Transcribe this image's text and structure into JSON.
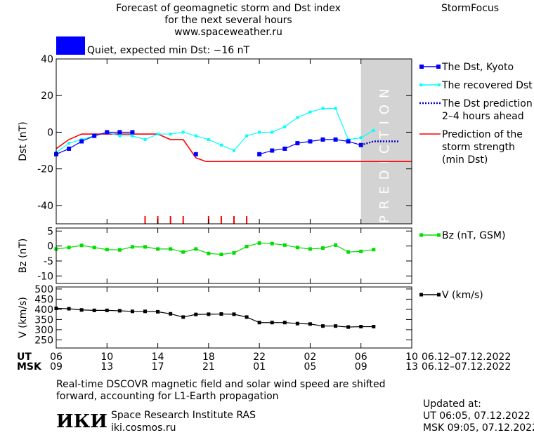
{
  "header": {
    "title_line1": "Forecast of geomagnetic storm and Dst index",
    "title_line2": "for the next several hours",
    "title_line3": "www.spaceweather.ru",
    "brand": "StormFocus",
    "status_text": "Quiet, expected min Dst: −16 nT",
    "status_color": "#0000ff"
  },
  "prediction_label": "PREDICTION",
  "footer": {
    "note_line1": "Real-time DSCOVR magnetic field and solar wind speed are shifted",
    "note_line2": "forward, accounting for L1-Earth propagation",
    "institute": "Space Research Institute RAS",
    "site": "iki.cosmos.ru",
    "logo_text": "ИКИ",
    "updated_label": "Updated at:",
    "updated_ut": "UT   06:05, 07.12.2022",
    "updated_msk": "MSK 09:05, 07.12.2022"
  },
  "time_axis": {
    "ut_label": "UT",
    "msk_label": "MSK",
    "ut_ticks": [
      "06",
      "10",
      "14",
      "18",
      "22",
      "02",
      "06",
      "10"
    ],
    "msk_ticks": [
      "09",
      "13",
      "17",
      "21",
      "01",
      "05",
      "09",
      "13"
    ],
    "ut_range": "06.12–07.12.2022",
    "msk_range": "06.12–07.12.2022"
  },
  "chart_data": [
    {
      "type": "line",
      "ylabel": "Dst (nT)",
      "ylim": [
        -50,
        40
      ],
      "yticks": [
        40,
        20,
        0,
        -20,
        -40
      ],
      "x_unit": "hours since 06 UT 06.12.2022",
      "xlim": [
        0,
        28
      ],
      "prediction_region": [
        24,
        28
      ],
      "colors": {
        "dst": "#0000ff",
        "recovered": "#00ffff",
        "prediction": "#0000cc",
        "strength": "#ff0000",
        "shade": "#d3d3d3"
      },
      "series": [
        {
          "name": "The Dst, Kyoto",
          "key": "dst",
          "x": [
            0,
            1,
            2,
            3,
            4,
            5,
            6,
            11,
            16,
            17,
            18,
            19,
            20,
            21,
            22,
            23,
            24
          ],
          "y": [
            -12,
            -9,
            -5,
            -2,
            0,
            0,
            0,
            -12,
            -12,
            -10,
            -9,
            -6,
            -5,
            -4,
            -4,
            -5,
            -7
          ]
        },
        {
          "name": "The recovered Dst",
          "key": "recovered",
          "x": [
            0,
            1,
            2,
            3,
            4,
            5,
            6,
            7,
            8,
            9,
            10,
            11,
            12,
            13,
            14,
            15,
            16,
            17,
            18,
            19,
            20,
            21,
            22,
            23,
            24,
            25
          ],
          "y": [
            -11,
            -6,
            -4,
            -2,
            0,
            -2,
            -2,
            -4,
            -1,
            -1,
            0,
            -2,
            -4,
            -7,
            -10,
            -2,
            0,
            0,
            3,
            8,
            11,
            13,
            13,
            -4,
            -3,
            1
          ]
        },
        {
          "name": "The Dst prediction 2-4 hours ahead",
          "key": "prediction",
          "x": [
            24,
            25,
            26,
            27
          ],
          "y": [
            -7,
            -5,
            -5,
            -5
          ]
        },
        {
          "name": "Prediction of the storm strength (min Dst)",
          "key": "strength",
          "x": [
            0,
            1,
            2,
            3,
            4,
            5,
            6,
            7,
            8,
            9,
            10,
            11,
            11.8,
            28
          ],
          "y": [
            -9,
            -4,
            -1,
            -1,
            -1,
            -1,
            -1,
            -1,
            -1,
            -4,
            -4,
            -14,
            -16,
            -16
          ]
        }
      ],
      "event_marks_x": [
        7,
        8,
        9,
        10,
        12,
        13,
        14,
        15
      ]
    },
    {
      "type": "line",
      "ylabel": "Bz (nT)",
      "ylim": [
        -12.5,
        6
      ],
      "yticks": [
        5,
        0,
        -5,
        -10
      ],
      "series": [
        {
          "name": "Bz (nT, GSM)",
          "key": "bz",
          "color": "#00dd00",
          "x": [
            0,
            1,
            2,
            3,
            4,
            5,
            6,
            7,
            8,
            9,
            10,
            11,
            12,
            13,
            14,
            15,
            16,
            17,
            18,
            19,
            20,
            21,
            22,
            23,
            24,
            25
          ],
          "y": [
            -1,
            -0.5,
            0.2,
            -0.5,
            -1.2,
            -1.3,
            -0.3,
            -0.3,
            -1,
            -1,
            -2,
            -1,
            -2.5,
            -2.8,
            -2.3,
            -0.2,
            1.0,
            0.8,
            0.3,
            -0.5,
            -1,
            -0.7,
            0.3,
            -2,
            -1.8,
            -1.2
          ]
        }
      ]
    },
    {
      "type": "line",
      "ylabel": "V (km/s)",
      "ylim": [
        210,
        510
      ],
      "yticks": [
        500,
        450,
        400,
        350,
        300,
        250
      ],
      "series": [
        {
          "name": "V (km/s)",
          "key": "v",
          "color": "#000000",
          "x": [
            0,
            1,
            2,
            3,
            4,
            5,
            6,
            7,
            8,
            9,
            10,
            11,
            12,
            13,
            14,
            15,
            16,
            17,
            18,
            19,
            20,
            21,
            22,
            23,
            24,
            25
          ],
          "y": [
            405,
            403,
            397,
            395,
            395,
            393,
            390,
            390,
            388,
            378,
            362,
            375,
            376,
            377,
            376,
            362,
            335,
            335,
            335,
            330,
            328,
            318,
            318,
            313,
            315,
            315
          ]
        }
      ]
    }
  ]
}
